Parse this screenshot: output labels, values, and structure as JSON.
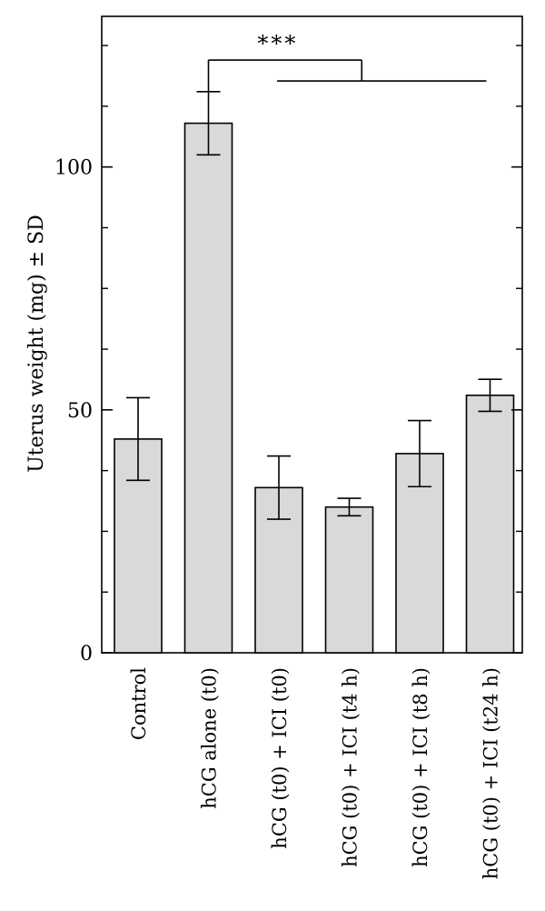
{
  "chart_data": {
    "type": "bar",
    "categories": [
      "Control",
      "hCG alone (t0)",
      "hCG (t0) + ICI (t0)",
      "hCG (t0) + ICI (t4 h)",
      "hCG (t0) + ICI (t8 h)",
      "hCG (t0) + ICI (t24 h)"
    ],
    "values": [
      44,
      109,
      34,
      30,
      41,
      53
    ],
    "errors": [
      8.5,
      6.5,
      6.5,
      1.8,
      6.8,
      3.3
    ],
    "ylabel": "Uterus weight (mg) ± SD",
    "xlabel": "",
    "ylim": [
      0,
      131
    ],
    "yticks": [
      0,
      50,
      100
    ],
    "minor_ticks": [
      12.5,
      25,
      37.5,
      62.5,
      75,
      87.5,
      112.5,
      125
    ],
    "significance": {
      "label": "***",
      "from": 1,
      "to": [
        2,
        5
      ],
      "level": 122
    },
    "bar_color": "#d9d9d9",
    "grid": false
  }
}
